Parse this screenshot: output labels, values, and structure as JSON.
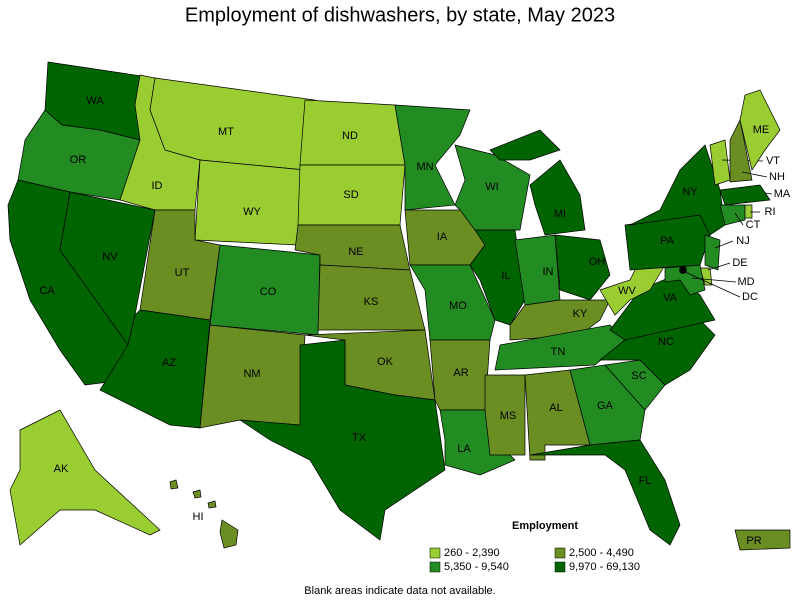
{
  "title": "Employment of dishwashers, by state, May 2023",
  "legend": {
    "title": "Employment",
    "items": [
      {
        "label": "260 - 2,390",
        "color": "#9acd32"
      },
      {
        "label": "2,500 - 4,490",
        "color": "#6b8e23"
      },
      {
        "label": "5,350 - 9,540",
        "color": "#228b22"
      },
      {
        "label": "9,970 - 69,130",
        "color": "#006400"
      }
    ]
  },
  "states": [
    {
      "label": "WA",
      "color": "#006400"
    },
    {
      "label": "OR",
      "color": "#228b22"
    },
    {
      "label": "CA",
      "color": "#006400"
    },
    {
      "label": "NV",
      "color": "#006400"
    },
    {
      "label": "ID",
      "color": "#9acd32"
    },
    {
      "label": "MT",
      "color": "#9acd32"
    },
    {
      "label": "WY",
      "color": "#9acd32"
    },
    {
      "label": "UT",
      "color": "#6b8e23"
    },
    {
      "label": "AZ",
      "color": "#006400"
    },
    {
      "label": "CO",
      "color": "#228b22"
    },
    {
      "label": "NM",
      "color": "#6b8e23"
    },
    {
      "label": "ND",
      "color": "#9acd32"
    },
    {
      "label": "SD",
      "color": "#9acd32"
    },
    {
      "label": "NE",
      "color": "#6b8e23"
    },
    {
      "label": "KS",
      "color": "#6b8e23"
    },
    {
      "label": "OK",
      "color": "#6b8e23"
    },
    {
      "label": "TX",
      "color": "#006400"
    },
    {
      "label": "MN",
      "color": "#228b22"
    },
    {
      "label": "IA",
      "color": "#6b8e23"
    },
    {
      "label": "MO",
      "color": "#228b22"
    },
    {
      "label": "AR",
      "color": "#6b8e23"
    },
    {
      "label": "LA",
      "color": "#228b22"
    },
    {
      "label": "WI",
      "color": "#228b22"
    },
    {
      "label": "IL",
      "color": "#006400"
    },
    {
      "label": "MI",
      "color": "#006400"
    },
    {
      "label": "IN",
      "color": "#228b22"
    },
    {
      "label": "OH",
      "color": "#006400"
    },
    {
      "label": "KY",
      "color": "#6b8e23"
    },
    {
      "label": "TN",
      "color": "#228b22"
    },
    {
      "label": "MS",
      "color": "#6b8e23"
    },
    {
      "label": "AL",
      "color": "#6b8e23"
    },
    {
      "label": "GA",
      "color": "#228b22"
    },
    {
      "label": "FL",
      "color": "#006400"
    },
    {
      "label": "SC",
      "color": "#228b22"
    },
    {
      "label": "NC",
      "color": "#006400"
    },
    {
      "label": "VA",
      "color": "#006400"
    },
    {
      "label": "WV",
      "color": "#9acd32"
    },
    {
      "label": "PA",
      "color": "#006400"
    },
    {
      "label": "NY",
      "color": "#006400"
    },
    {
      "label": "VT",
      "color": "#9acd32"
    },
    {
      "label": "NH",
      "color": "#6b8e23"
    },
    {
      "label": "ME",
      "color": "#9acd32"
    },
    {
      "label": "MA",
      "color": "#006400"
    },
    {
      "label": "CT",
      "color": "#228b22"
    },
    {
      "label": "RI",
      "color": "#9acd32"
    },
    {
      "label": "NJ",
      "color": "#228b22"
    },
    {
      "label": "DE",
      "color": "#9acd32"
    },
    {
      "label": "MD",
      "color": "#228b22"
    },
    {
      "label": "DC",
      "color": "#000000"
    },
    {
      "label": "AK",
      "color": "#9acd32"
    },
    {
      "label": "HI",
      "color": "#6b8e23"
    },
    {
      "label": "PR",
      "color": "#6b8e23"
    }
  ],
  "note": "Blank areas indicate data not available."
}
